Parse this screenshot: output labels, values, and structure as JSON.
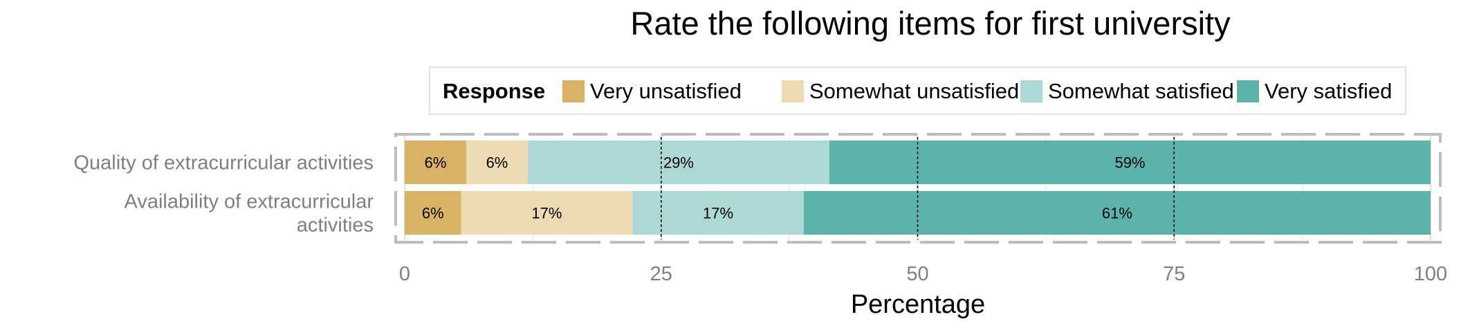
{
  "chart_data": {
    "type": "bar",
    "orientation": "horizontal",
    "stacked": true,
    "title": "Rate the following items for first university",
    "xlabel": "Percentage",
    "ylabel": "",
    "xlim": [
      0,
      100
    ],
    "x_ticks": [
      "0",
      "25",
      "50",
      "75",
      "100"
    ],
    "x_tick_values": [
      0,
      25,
      50,
      75,
      100
    ],
    "grid": true,
    "legend": {
      "title": "Response",
      "position": "top"
    },
    "categories": [
      "Quality of extracurricular activities",
      "Availability of extracurricular activities"
    ],
    "category_lines": [
      [
        "Quality of extracurricular activities"
      ],
      [
        "Availability of extracurricular",
        "activities"
      ]
    ],
    "series": [
      {
        "name": "Very unsatisfied",
        "color": "#d9b365",
        "values": [
          6,
          5.5
        ],
        "labels": [
          "6%",
          "6%"
        ]
      },
      {
        "name": "Somewhat unsatisfied",
        "color": "#ecdbb3",
        "values": [
          6,
          16.7
        ],
        "labels": [
          "6%",
          "17%"
        ]
      },
      {
        "name": "Somewhat satisfied",
        "color": "#acd9d6",
        "values": [
          29.4,
          16.7
        ],
        "labels": [
          "29%",
          "17%"
        ]
      },
      {
        "name": "Very satisfied",
        "color": "#5bb3aa",
        "values": [
          58.6,
          61.1
        ],
        "labels": [
          "59%",
          "61%"
        ]
      }
    ]
  }
}
